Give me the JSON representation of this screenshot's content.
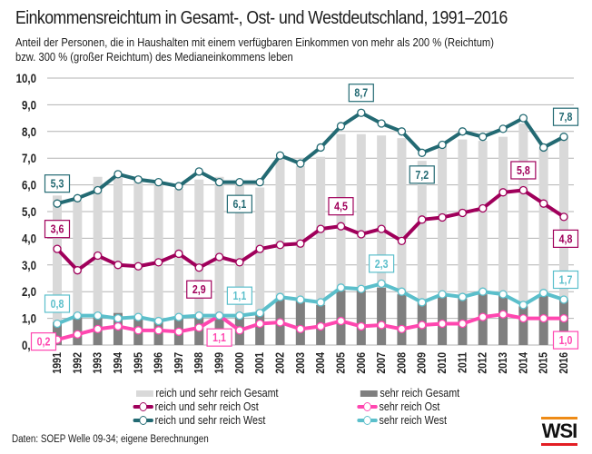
{
  "header": {
    "title": "Einkommensreichtum in Gesamt-, Ost- und Westdeutschland, 1991–2016",
    "subtitle_line1": "Anteil der Personen, die in Haushalten mit einem verfügbaren Einkommen von mehr als 200 % (Reichtum)",
    "subtitle_line2": "bzw. 300 % (großer Reichtum) des Medianeinkommens leben"
  },
  "footer": {
    "source": "Daten: SOEP Welle 09-34; eigene Berechnungen",
    "logo_text": "WSI"
  },
  "colors": {
    "bar_gesamt": "#d9d9d9",
    "bar_sehr_gesamt": "#7f7f7f",
    "ost": "#a0005b",
    "sehr_ost": "#ff47b0",
    "west": "#236a73",
    "sehr_west": "#5bbfcb",
    "grid": "#b3b3b3"
  },
  "chart_data": {
    "type": "bar+line",
    "title": "Einkommensreichtum in Gesamt-, Ost- und Westdeutschland, 1991–2016",
    "xlabel": "",
    "ylabel": "",
    "ylim": [
      0,
      10
    ],
    "yticks": [
      "0,0",
      "1,0",
      "2,0",
      "3,0",
      "4,0",
      "5,0",
      "6,0",
      "7,0",
      "8,0",
      "9,0",
      "10,0"
    ],
    "grid": true,
    "legend_position": "bottom",
    "categories": [
      "1991",
      "1992",
      "1993",
      "1994",
      "1995",
      "1996",
      "1997",
      "1998",
      "1999",
      "2000",
      "2001",
      "2002",
      "2003",
      "2004",
      "2005",
      "2006",
      "2007",
      "2008",
      "2009",
      "2010",
      "2011",
      "2012",
      "2013",
      "2014",
      "2015",
      "2016"
    ],
    "series": [
      {
        "key": "bar_gesamt",
        "name": "reich und sehr reich Gesamt",
        "kind": "bar",
        "values": [
          5.6,
          5.4,
          6.3,
          6.4,
          6.2,
          6.05,
          5.85,
          6.2,
          6.3,
          6.0,
          5.9,
          7.0,
          6.7,
          7.05,
          7.9,
          7.9,
          7.85,
          7.75,
          6.9,
          7.55,
          7.7,
          7.65,
          7.8,
          8.3,
          7.4,
          7.8
        ]
      },
      {
        "key": "bar_sehr_gesamt",
        "name": "sehr reich Gesamt",
        "kind": "bar",
        "values": [
          0.85,
          1.13,
          1.13,
          1.2,
          1.0,
          0.9,
          1.0,
          1.05,
          1.15,
          1.1,
          1.2,
          1.75,
          1.7,
          1.5,
          2.05,
          2.05,
          2.15,
          1.9,
          1.6,
          1.85,
          1.75,
          1.9,
          1.85,
          1.45,
          1.9,
          1.7
        ]
      },
      {
        "key": "ost",
        "name": "reich und sehr reich Ost",
        "kind": "line",
        "values": [
          3.6,
          2.8,
          3.35,
          3.0,
          2.95,
          3.1,
          3.42,
          2.9,
          3.3,
          3.1,
          3.6,
          3.75,
          3.8,
          4.35,
          4.45,
          4.15,
          4.35,
          3.9,
          4.7,
          4.78,
          4.95,
          5.12,
          5.72,
          5.8,
          5.3,
          4.8
        ],
        "labels": [
          {
            "year": "1991",
            "text": "3,6",
            "pos": "above"
          },
          {
            "year": "1998",
            "text": "2,9",
            "pos": "below"
          },
          {
            "year": "2005",
            "text": "4,5",
            "pos": "above"
          },
          {
            "year": "2014",
            "text": "5,8",
            "pos": "above"
          },
          {
            "year": "2016",
            "text": "4,8",
            "pos": "below"
          }
        ]
      },
      {
        "key": "sehr_ost",
        "name": "sehr reich Ost",
        "kind": "line",
        "values": [
          0.2,
          0.4,
          0.6,
          0.7,
          0.55,
          0.55,
          0.5,
          0.65,
          1.1,
          0.55,
          0.8,
          0.85,
          0.6,
          0.7,
          0.9,
          0.7,
          0.75,
          0.6,
          0.75,
          0.8,
          0.8,
          1.05,
          1.15,
          1.0,
          1.0,
          1.0
        ],
        "labels": [
          {
            "year": "1991",
            "text": "0,2",
            "pos": "left"
          },
          {
            "year": "1999",
            "text": "1,1",
            "pos": "below"
          },
          {
            "year": "2016",
            "text": "1,0",
            "pos": "below"
          }
        ]
      },
      {
        "key": "west",
        "name": "reich und sehr reich West",
        "kind": "line",
        "values": [
          5.3,
          5.5,
          5.8,
          6.4,
          6.2,
          6.1,
          5.95,
          6.5,
          6.1,
          6.1,
          6.1,
          7.1,
          6.8,
          7.4,
          8.2,
          8.7,
          8.3,
          8.0,
          7.2,
          7.5,
          8.0,
          7.8,
          8.1,
          8.5,
          7.4,
          7.8
        ],
        "labels": [
          {
            "year": "1991",
            "text": "5,3",
            "pos": "above"
          },
          {
            "year": "2000",
            "text": "6,1",
            "pos": "below"
          },
          {
            "year": "2006",
            "text": "8,7",
            "pos": "above"
          },
          {
            "year": "2009",
            "text": "7,2",
            "pos": "below"
          },
          {
            "year": "2016",
            "text": "7,8",
            "pos": "above"
          }
        ]
      },
      {
        "key": "sehr_west",
        "name": "sehr reich West",
        "kind": "line",
        "values": [
          0.8,
          1.1,
          1.1,
          1.0,
          1.05,
          0.9,
          1.05,
          1.1,
          1.1,
          1.1,
          1.2,
          1.8,
          1.7,
          1.6,
          2.15,
          2.1,
          2.3,
          2.0,
          1.6,
          1.9,
          1.8,
          2.0,
          1.9,
          1.5,
          1.95,
          1.7
        ],
        "labels": [
          {
            "year": "1991",
            "text": "0,8",
            "pos": "above"
          },
          {
            "year": "2000",
            "text": "1,1",
            "pos": "above"
          },
          {
            "year": "2007",
            "text": "2,3",
            "pos": "above"
          },
          {
            "year": "2016",
            "text": "1,7",
            "pos": "above"
          }
        ]
      }
    ]
  },
  "legend": {
    "items": [
      {
        "key": "bar_gesamt",
        "label": "reich und sehr reich Gesamt"
      },
      {
        "key": "bar_sehr_gesamt",
        "label": "sehr reich Gesamt"
      },
      {
        "key": "ost",
        "label": "reich und sehr reich Ost"
      },
      {
        "key": "sehr_ost",
        "label": "sehr reich Ost"
      },
      {
        "key": "west",
        "label": "reich und sehr reich West"
      },
      {
        "key": "sehr_west",
        "label": "sehr reich West"
      }
    ]
  }
}
